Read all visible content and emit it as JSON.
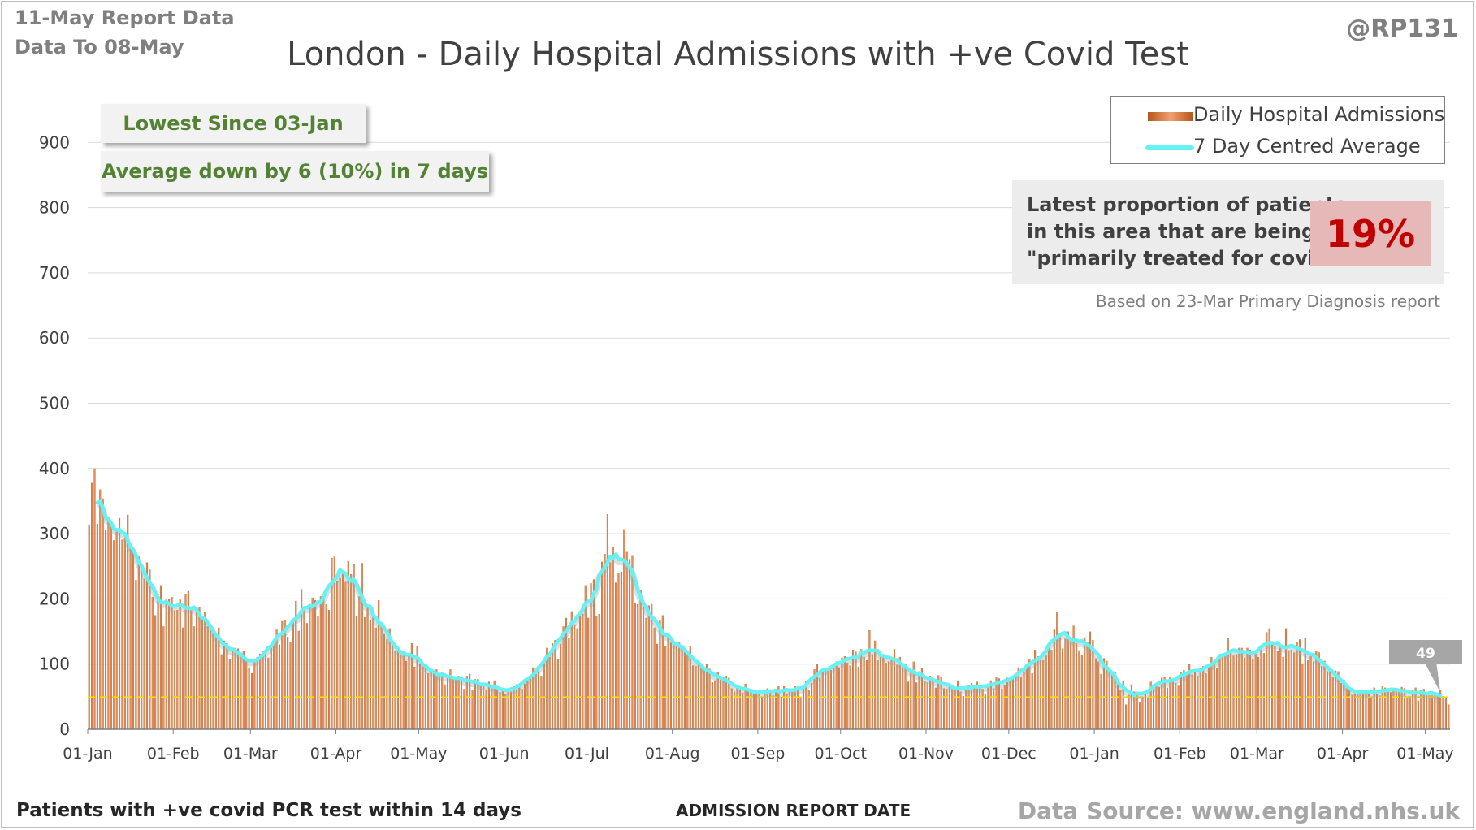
{
  "header": {
    "report_date": "11-May Report Data",
    "data_to": "Data To 08-May",
    "author": "@RP131"
  },
  "callouts": {
    "lowest": "Lowest Since 03-Jan",
    "average": "Average down by 6 (10%) in 7 days"
  },
  "proportion": {
    "line1": "Latest proportion of patients",
    "line2": "in this area that are being",
    "line3": "\"primarily treated for covid\".",
    "value": "19%",
    "note": "Based on 23-Mar Primary Diagnosis report"
  },
  "footer": {
    "left": "Patients with +ve covid PCR test within 14 days",
    "source": "Data Source: www.england.nhs.uk"
  },
  "colors": {
    "bar_dark": "#b5561a",
    "bar_light": "#f0a070",
    "average_line": "#66f2f2",
    "reference_line": "#ffd700",
    "latest_label_bg": "#a6a6a6"
  },
  "chart_data": {
    "type": "bar",
    "title": "London - Daily Hospital Admissions with +ve Covid Test",
    "xlabel": "ADMISSION REPORT DATE",
    "ylabel": "",
    "ylim": [
      0,
      1000
    ],
    "yticks": [
      0,
      100,
      200,
      300,
      400,
      500,
      600,
      700,
      800,
      900
    ],
    "grid": true,
    "legend_position": "top-right",
    "x_start": "01-Jan",
    "x_end": "08-May",
    "xtick_labels": [
      {
        "label": "01-Jan",
        "day": 0
      },
      {
        "label": "01-Feb",
        "day": 31
      },
      {
        "label": "01-Mar",
        "day": 59
      },
      {
        "label": "01-Apr",
        "day": 90
      },
      {
        "label": "01-May",
        "day": 120
      },
      {
        "label": "01-Jun",
        "day": 151
      },
      {
        "label": "01-Jul",
        "day": 181
      },
      {
        "label": "01-Aug",
        "day": 212
      },
      {
        "label": "01-Sep",
        "day": 243
      },
      {
        "label": "01-Oct",
        "day": 273
      },
      {
        "label": "01-Nov",
        "day": 304
      },
      {
        "label": "01-Dec",
        "day": 334
      },
      {
        "label": "01-Jan",
        "day": 365
      },
      {
        "label": "01-Feb",
        "day": 396
      },
      {
        "label": "01-Mar",
        "day": 424
      },
      {
        "label": "01-Apr",
        "day": 455
      },
      {
        "label": "01-May",
        "day": 485
      }
    ],
    "series": [
      {
        "name": "Daily Hospital Admissions",
        "type": "bar",
        "average_anchors": [
          [
            0,
            320
          ],
          [
            3,
            345
          ],
          [
            8,
            310
          ],
          [
            14,
            280
          ],
          [
            21,
            230
          ],
          [
            28,
            195
          ],
          [
            35,
            185
          ],
          [
            42,
            165
          ],
          [
            49,
            135
          ],
          [
            56,
            110
          ],
          [
            59,
            105
          ],
          [
            66,
            135
          ],
          [
            73,
            170
          ],
          [
            80,
            200
          ],
          [
            86,
            205
          ],
          [
            90,
            230
          ],
          [
            94,
            225
          ],
          [
            100,
            195
          ],
          [
            106,
            160
          ],
          [
            110,
            130
          ],
          [
            116,
            115
          ],
          [
            122,
            95
          ],
          [
            130,
            80
          ],
          [
            137,
            75
          ],
          [
            144,
            65
          ],
          [
            150,
            60
          ],
          [
            155,
            60
          ],
          [
            161,
            85
          ],
          [
            168,
            120
          ],
          [
            175,
            160
          ],
          [
            182,
            195
          ],
          [
            186,
            230
          ],
          [
            190,
            260
          ],
          [
            193,
            262
          ],
          [
            196,
            248
          ],
          [
            200,
            205
          ],
          [
            205,
            160
          ],
          [
            210,
            138
          ],
          [
            214,
            128
          ],
          [
            221,
            100
          ],
          [
            228,
            80
          ],
          [
            235,
            65
          ],
          [
            243,
            56
          ],
          [
            252,
            58
          ],
          [
            258,
            60
          ],
          [
            264,
            85
          ],
          [
            270,
            100
          ],
          [
            276,
            110
          ],
          [
            283,
            118
          ],
          [
            289,
            112
          ],
          [
            296,
            95
          ],
          [
            303,
            80
          ],
          [
            310,
            68
          ],
          [
            317,
            60
          ],
          [
            326,
            65
          ],
          [
            334,
            72
          ],
          [
            341,
            95
          ],
          [
            347,
            120
          ],
          [
            352,
            143
          ],
          [
            356,
            140
          ],
          [
            361,
            128
          ],
          [
            366,
            110
          ],
          [
            371,
            80
          ],
          [
            377,
            60
          ],
          [
            381,
            52
          ],
          [
            386,
            65
          ],
          [
            392,
            78
          ],
          [
            398,
            85
          ],
          [
            405,
            92
          ],
          [
            412,
            118
          ],
          [
            418,
            115
          ],
          [
            426,
            125
          ],
          [
            432,
            132
          ],
          [
            438,
            125
          ],
          [
            444,
            108
          ],
          [
            451,
            88
          ],
          [
            456,
            65
          ],
          [
            461,
            55
          ],
          [
            468,
            58
          ],
          [
            476,
            58
          ],
          [
            484,
            54
          ],
          [
            490,
            52
          ],
          [
            493,
            52
          ]
        ],
        "variation_amplitude": 0.15,
        "peak_values": [
          {
            "day": 2,
            "value": 400
          },
          {
            "day": 4,
            "value": 368
          },
          {
            "day": 88,
            "value": 263
          },
          {
            "day": 94,
            "value": 258
          },
          {
            "day": 99,
            "value": 255
          },
          {
            "day": 188,
            "value": 330
          },
          {
            "day": 195,
            "value": 272
          },
          {
            "day": 283,
            "value": 152
          },
          {
            "day": 351,
            "value": 180
          },
          {
            "day": 363,
            "value": 150
          },
          {
            "day": 376,
            "value": 38
          },
          {
            "day": 428,
            "value": 155
          },
          {
            "day": 434,
            "value": 155
          },
          {
            "day": 493,
            "value": 38
          }
        ]
      },
      {
        "name": "7 Day Centred Average",
        "type": "line",
        "start_day": 3,
        "end_day": 490
      }
    ],
    "reference_line": {
      "value": 49,
      "style": "dashed"
    },
    "latest_label": {
      "value": "49",
      "day": 490
    }
  }
}
